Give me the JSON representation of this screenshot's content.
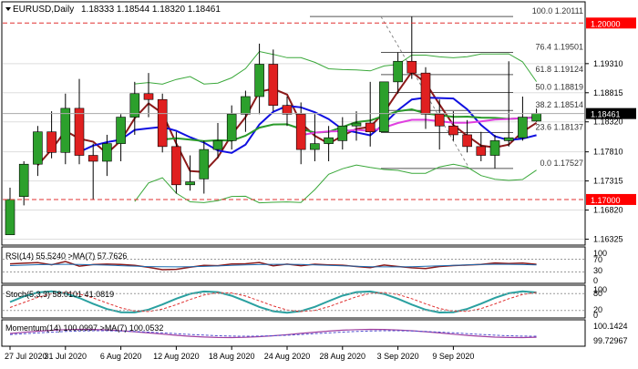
{
  "header": {
    "symbol_timeframe": "EURUSD,Daily",
    "ohlc": "1.18333 1.18544 1.18320 1.18461"
  },
  "colors": {
    "bull": "#2ca02c",
    "bear": "#e02020",
    "ma_red": "#8b1a1a",
    "ma_blue": "#1010e0",
    "ma_green": "#2a9a2a",
    "ma_magenta": "#e040e0",
    "bollinger": "#3aa83a",
    "level_line": "#e03030",
    "grid": "#dddddd"
  },
  "price_axis": {
    "labels": [
      "1.19310",
      "1.18815",
      "1.18320",
      "1.17810",
      "1.17315",
      "1.16820",
      "1.16325"
    ]
  },
  "price_tags": [
    {
      "text": "1.20000",
      "price": 1.2,
      "bg": "#ff0000",
      "fg": "#ffffff"
    },
    {
      "text": "1.18461",
      "price": 1.18461,
      "bg": "#000000",
      "fg": "#ffffff"
    },
    {
      "text": "1.17000",
      "price": 1.17,
      "bg": "#ff0000",
      "fg": "#ffffff"
    }
  ],
  "fibonacci": [
    {
      "label": "100.0 1.20111",
      "price": 1.20111
    },
    {
      "label": "76.4 1.19501",
      "price": 1.19501
    },
    {
      "label": "61.8 1.19124",
      "price": 1.19124
    },
    {
      "label": "50.0 1.18819",
      "price": 1.18819
    },
    {
      "label": "38.2 1.18514",
      "price": 1.18514
    },
    {
      "label": "23.6 1.18137",
      "price": 1.18137
    },
    {
      "label": "0.0 1.17527",
      "price": 1.17527
    }
  ],
  "indicators": {
    "rsi": {
      "label": "RSI(14) 55.5240 >MA(7) 57.7626",
      "scale_labels": [
        "100",
        "70",
        "30",
        "0"
      ]
    },
    "stoch": {
      "label": "Stoch(5,3,3) 58.0101 41.0819",
      "scale_labels": [
        "100",
        "80",
        "20",
        "0"
      ]
    },
    "momentum": {
      "label": "Momentum(14) 100.0997 >MA(7) 100.0532",
      "scale_labels": [
        "100.1424",
        "99.72967"
      ]
    }
  },
  "time_axis": {
    "labels": [
      "27 Jul 2020",
      "31 Jul 2020",
      "6 Aug 2020",
      "12 Aug 2020",
      "18 Aug 2020",
      "24 Aug 2020",
      "28 Aug 2020",
      "3 Sep 2020",
      "9 Sep 2020"
    ]
  },
  "chart_data": {
    "type": "candlestick",
    "instrument": "EURUSD",
    "timeframe": "Daily",
    "candles": [
      {
        "o": 1.164,
        "h": 1.172,
        "l": 1.164,
        "c": 1.17
      },
      {
        "o": 1.1705,
        "h": 1.1765,
        "l": 1.169,
        "c": 1.176
      },
      {
        "o": 1.176,
        "h": 1.1825,
        "l": 1.174,
        "c": 1.1815
      },
      {
        "o": 1.1815,
        "h": 1.185,
        "l": 1.177,
        "c": 1.178
      },
      {
        "o": 1.178,
        "h": 1.188,
        "l": 1.176,
        "c": 1.1855
      },
      {
        "o": 1.1855,
        "h": 1.1905,
        "l": 1.176,
        "c": 1.1775
      },
      {
        "o": 1.1775,
        "h": 1.1795,
        "l": 1.17,
        "c": 1.1765
      },
      {
        "o": 1.1765,
        "h": 1.181,
        "l": 1.174,
        "c": 1.1795
      },
      {
        "o": 1.1795,
        "h": 1.1845,
        "l": 1.1765,
        "c": 1.184
      },
      {
        "o": 1.184,
        "h": 1.19,
        "l": 1.181,
        "c": 1.188
      },
      {
        "o": 1.188,
        "h": 1.1915,
        "l": 1.184,
        "c": 1.187
      },
      {
        "o": 1.187,
        "h": 1.188,
        "l": 1.178,
        "c": 1.179
      },
      {
        "o": 1.179,
        "h": 1.1815,
        "l": 1.171,
        "c": 1.1725
      },
      {
        "o": 1.1725,
        "h": 1.1775,
        "l": 1.1715,
        "c": 1.173
      },
      {
        "o": 1.1735,
        "h": 1.18,
        "l": 1.171,
        "c": 1.1785
      },
      {
        "o": 1.1785,
        "h": 1.183,
        "l": 1.177,
        "c": 1.18
      },
      {
        "o": 1.18,
        "h": 1.186,
        "l": 1.1785,
        "c": 1.1845
      },
      {
        "o": 1.1845,
        "h": 1.1885,
        "l": 1.1815,
        "c": 1.1875
      },
      {
        "o": 1.1875,
        "h": 1.1965,
        "l": 1.1845,
        "c": 1.193
      },
      {
        "o": 1.193,
        "h": 1.1955,
        "l": 1.185,
        "c": 1.186
      },
      {
        "o": 1.186,
        "h": 1.1875,
        "l": 1.1825,
        "c": 1.1845
      },
      {
        "o": 1.1845,
        "h": 1.1865,
        "l": 1.176,
        "c": 1.1785
      },
      {
        "o": 1.1785,
        "h": 1.1845,
        "l": 1.1765,
        "c": 1.1795
      },
      {
        "o": 1.1795,
        "h": 1.1825,
        "l": 1.1765,
        "c": 1.1805
      },
      {
        "o": 1.18,
        "h": 1.184,
        "l": 1.1785,
        "c": 1.1825
      },
      {
        "o": 1.1825,
        "h": 1.185,
        "l": 1.18,
        "c": 1.183
      },
      {
        "o": 1.183,
        "h": 1.19,
        "l": 1.179,
        "c": 1.1815
      },
      {
        "o": 1.1815,
        "h": 1.19,
        "l": 1.1815,
        "c": 1.19
      },
      {
        "o": 1.19,
        "h": 1.195,
        "l": 1.188,
        "c": 1.1935
      },
      {
        "o": 1.1935,
        "h": 1.2011,
        "l": 1.1905,
        "c": 1.1915
      },
      {
        "o": 1.1915,
        "h": 1.1925,
        "l": 1.182,
        "c": 1.1845
      },
      {
        "o": 1.1845,
        "h": 1.187,
        "l": 1.1785,
        "c": 1.1825
      },
      {
        "o": 1.1825,
        "h": 1.185,
        "l": 1.18,
        "c": 1.181
      },
      {
        "o": 1.181,
        "h": 1.1835,
        "l": 1.178,
        "c": 1.179
      },
      {
        "o": 1.179,
        "h": 1.1815,
        "l": 1.1765,
        "c": 1.1775
      },
      {
        "o": 1.1775,
        "h": 1.181,
        "l": 1.1753,
        "c": 1.18
      },
      {
        "o": 1.18,
        "h": 1.1935,
        "l": 1.179,
        "c": 1.1805
      },
      {
        "o": 1.1805,
        "h": 1.1875,
        "l": 1.18,
        "c": 1.184
      },
      {
        "o": 1.18333,
        "h": 1.18544,
        "l": 1.1832,
        "c": 1.18461
      }
    ]
  }
}
